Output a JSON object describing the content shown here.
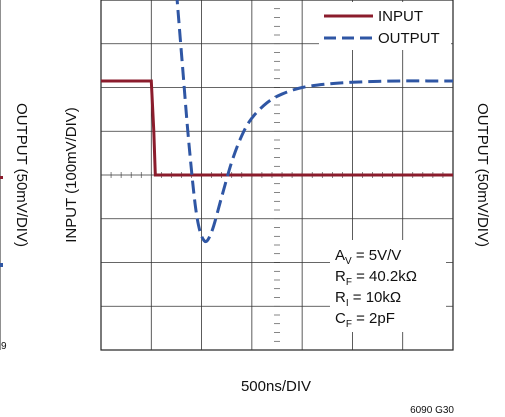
{
  "chart_data": {
    "type": "line",
    "xlabel": "500ns/DIV",
    "ylabel_left": "INPUT (100mV/DIV)",
    "ylabel_right": "OUTPUT (50mV/DIV)",
    "ylabel_edge_partial": "OUTPUT (50mV/DIV)",
    "figure_id": "6090 G30",
    "edge_fragment": "9",
    "grid": true,
    "divisions": {
      "x": 7,
      "y": 8
    },
    "x_unit": "DIV",
    "y_unit": "DIV",
    "series": [
      {
        "name": "INPUT",
        "color": "#8b1c2c",
        "style": "solid",
        "x": [
          0.0,
          1.0,
          1.05,
          1.08,
          7.0
        ],
        "y": [
          6.15,
          6.15,
          5.0,
          4.0,
          4.0
        ]
      },
      {
        "name": "OUTPUT",
        "color": "#2f56a4",
        "style": "dashed",
        "x": [
          1.5,
          1.62,
          1.75,
          1.9,
          2.05,
          2.2,
          2.4,
          2.6,
          2.8,
          3.0,
          3.3,
          3.6,
          4.0,
          4.5,
          5.0,
          5.5,
          6.0,
          6.5,
          7.0
        ],
        "y": [
          8.2,
          6.5,
          4.7,
          3.1,
          2.5,
          2.7,
          3.5,
          4.3,
          4.9,
          5.3,
          5.65,
          5.85,
          6.0,
          6.08,
          6.12,
          6.14,
          6.15,
          6.15,
          6.15
        ]
      }
    ],
    "params": [
      {
        "main": "A",
        "sub": "V",
        "rest": " = 5V/V"
      },
      {
        "main": "R",
        "sub": "F",
        "rest": " = 40.2kΩ"
      },
      {
        "main": "R",
        "sub": "I",
        "rest": " = 10kΩ"
      },
      {
        "main": "C",
        "sub": "F",
        "rest": " = 2pF"
      }
    ]
  }
}
